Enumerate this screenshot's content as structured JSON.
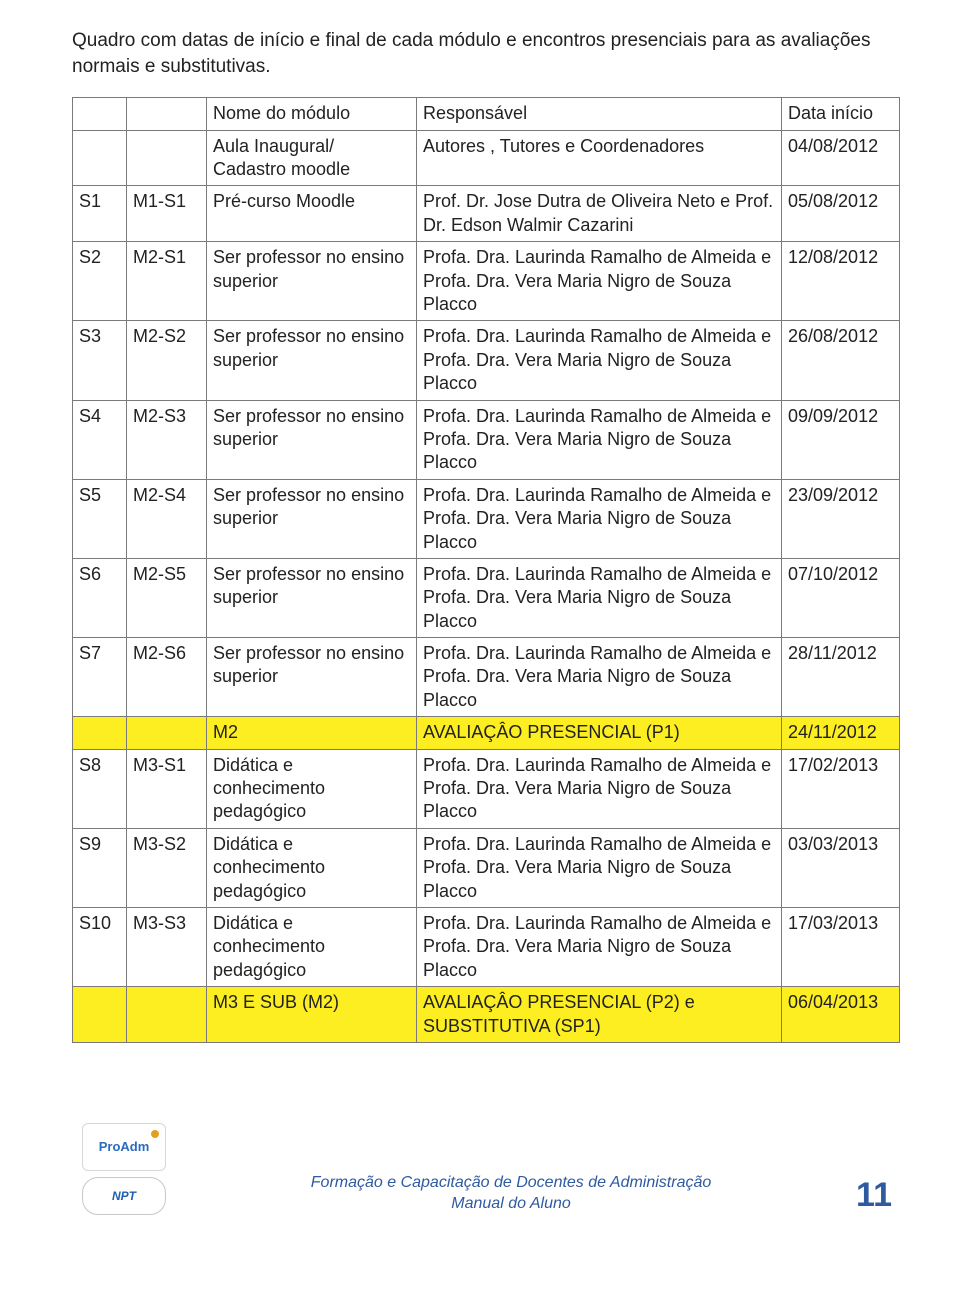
{
  "intro": "Quadro com datas de início e final de cada módulo e encontros presenciais para as avaliações normais e substitutivas.",
  "colors": {
    "highlight": "#fcee21",
    "border": "#7a7a7a",
    "footer_text": "#2e5aa0",
    "page_bg": "#ffffff"
  },
  "rows": [
    {
      "a": "",
      "b": "",
      "c": "Nome do módulo",
      "d": "Responsável",
      "e": "Data início",
      "hl": false
    },
    {
      "a": "",
      "b": "",
      "c": "Aula Inaugural/ Cadastro moodle",
      "d": "Autores , Tutores e Coordenadores",
      "e": "04/08/2012",
      "hl": false
    },
    {
      "a": "S1",
      "b": "M1-S1",
      "c": "Pré-curso Moodle",
      "d": "Prof. Dr. Jose Dutra de Oliveira Neto e Prof. Dr. Edson Walmir Cazarini",
      "e": "05/08/2012",
      "hl": false
    },
    {
      "a": "S2",
      "b": "M2-S1",
      "c": "Ser professor no ensino superior",
      "d": "Profa. Dra. Laurinda Ramalho de Almeida  e Profa. Dra. Vera Maria Nigro de Souza Placco",
      "e": "12/08/2012",
      "hl": false
    },
    {
      "a": "S3",
      "b": "M2-S2",
      "c": "Ser professor no ensino superior",
      "d": "Profa. Dra. Laurinda Ramalho de Almeida  e Profa. Dra. Vera Maria Nigro de Souza Placco",
      "e": "26/08/2012",
      "hl": false
    },
    {
      "a": "S4",
      "b": "M2-S3",
      "c": "Ser professor no ensino superior",
      "d": "Profa. Dra. Laurinda Ramalho de Almeida  e Profa. Dra. Vera Maria Nigro de Souza Placco",
      "e": "09/09/2012",
      "hl": false
    },
    {
      "a": "S5",
      "b": "M2-S4",
      "c": "Ser professor no ensino superior",
      "d": "Profa. Dra. Laurinda Ramalho de Almeida  e Profa. Dra. Vera Maria Nigro de Souza Placco",
      "e": "23/09/2012",
      "hl": false
    },
    {
      "a": "S6",
      "b": "M2-S5",
      "c": "Ser professor no ensino superior",
      "d": "Profa. Dra. Laurinda Ramalho de Almeida  e Profa. Dra. Vera Maria Nigro de Souza Placco",
      "e": "07/10/2012",
      "hl": false
    },
    {
      "a": "S7",
      "b": "M2-S6",
      "c": "Ser professor no ensino superior",
      "d": "Profa. Dra. Laurinda Ramalho de Almeida  e Profa. Dra. Vera Maria Nigro de Souza Placco",
      "e": "28/11/2012",
      "hl": false
    },
    {
      "a": "",
      "b": "",
      "c": "M2",
      "d": "AVALIAÇÂO PRESENCIAL (P1)",
      "e": "24/11/2012",
      "hl": true
    },
    {
      "a": "S8",
      "b": "M3-S1",
      "c": "Didática e conhecimento pedagógico",
      "d": "Profa. Dra. Laurinda Ramalho de Almeida  e Profa. Dra. Vera Maria Nigro de Souza Placco",
      "e": "17/02/2013",
      "hl": false
    },
    {
      "a": "S9",
      "b": "M3-S2",
      "c": "Didática e conhecimento pedagógico",
      "d": "Profa. Dra. Laurinda Ramalho de Almeida  e Profa. Dra. Vera Maria Nigro de Souza Placco",
      "e": "03/03/2013",
      "hl": false
    },
    {
      "a": "S10",
      "b": "M3-S3",
      "c": "Didática e conhecimento pedagógico",
      "d": "Profa. Dra. Laurinda Ramalho de Almeida  e Profa. Dra. Vera Maria Nigro de Souza Placco",
      "e": "17/03/2013",
      "hl": false
    },
    {
      "a": "",
      "b": "",
      "c": "M3\nE SUB (M2)",
      "d": "AVALIAÇÂO PRESENCIAL (P2) e SUBSTITUTIVA (SP1)",
      "e": "06/04/2013",
      "hl": true
    }
  ],
  "footer": {
    "logo1": "ProAdm",
    "logo2": "NPT",
    "line1": "Formação e Capacitação de Docentes de Administração",
    "line2": "Manual do Aluno",
    "page": "11"
  }
}
